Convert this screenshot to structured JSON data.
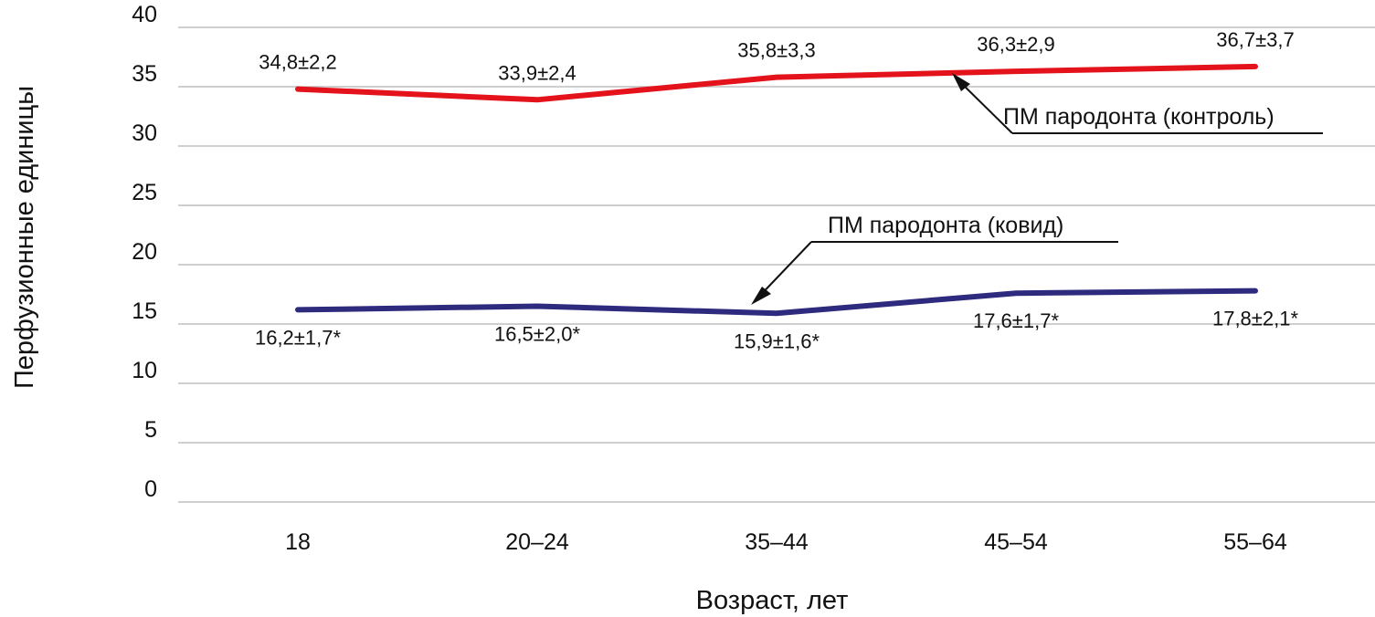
{
  "chart_data": {
    "type": "line",
    "categories": [
      "18",
      "20–24",
      "35–44",
      "45–54",
      "55–64"
    ],
    "series": [
      {
        "name": "ПМ пародонта (контроль)",
        "values": [
          34.8,
          33.9,
          35.8,
          36.3,
          36.7
        ],
        "labels": [
          "34,8±2,2",
          "33,9±2,4",
          "35,8±3,3",
          "36,3±2,9",
          "36,7±3,7"
        ],
        "color": "#e3121b"
      },
      {
        "name": "ПМ пародонта (ковид)",
        "values": [
          16.2,
          16.5,
          15.9,
          17.6,
          17.8
        ],
        "labels": [
          "16,2±1,7*",
          "16,5±2,0*",
          "15,9±1,6*",
          "17,6±1,7*",
          "17,8±2,1*"
        ],
        "color": "#2e2a7e"
      }
    ],
    "xlabel": "Возраст, лет",
    "ylabel": "Перфузионные единицы",
    "ylim": [
      0,
      40
    ],
    "yticks": [
      "0",
      "5",
      "10",
      "15",
      "20",
      "25",
      "30",
      "35",
      "40"
    ],
    "grid": true,
    "legend": "callouts"
  }
}
